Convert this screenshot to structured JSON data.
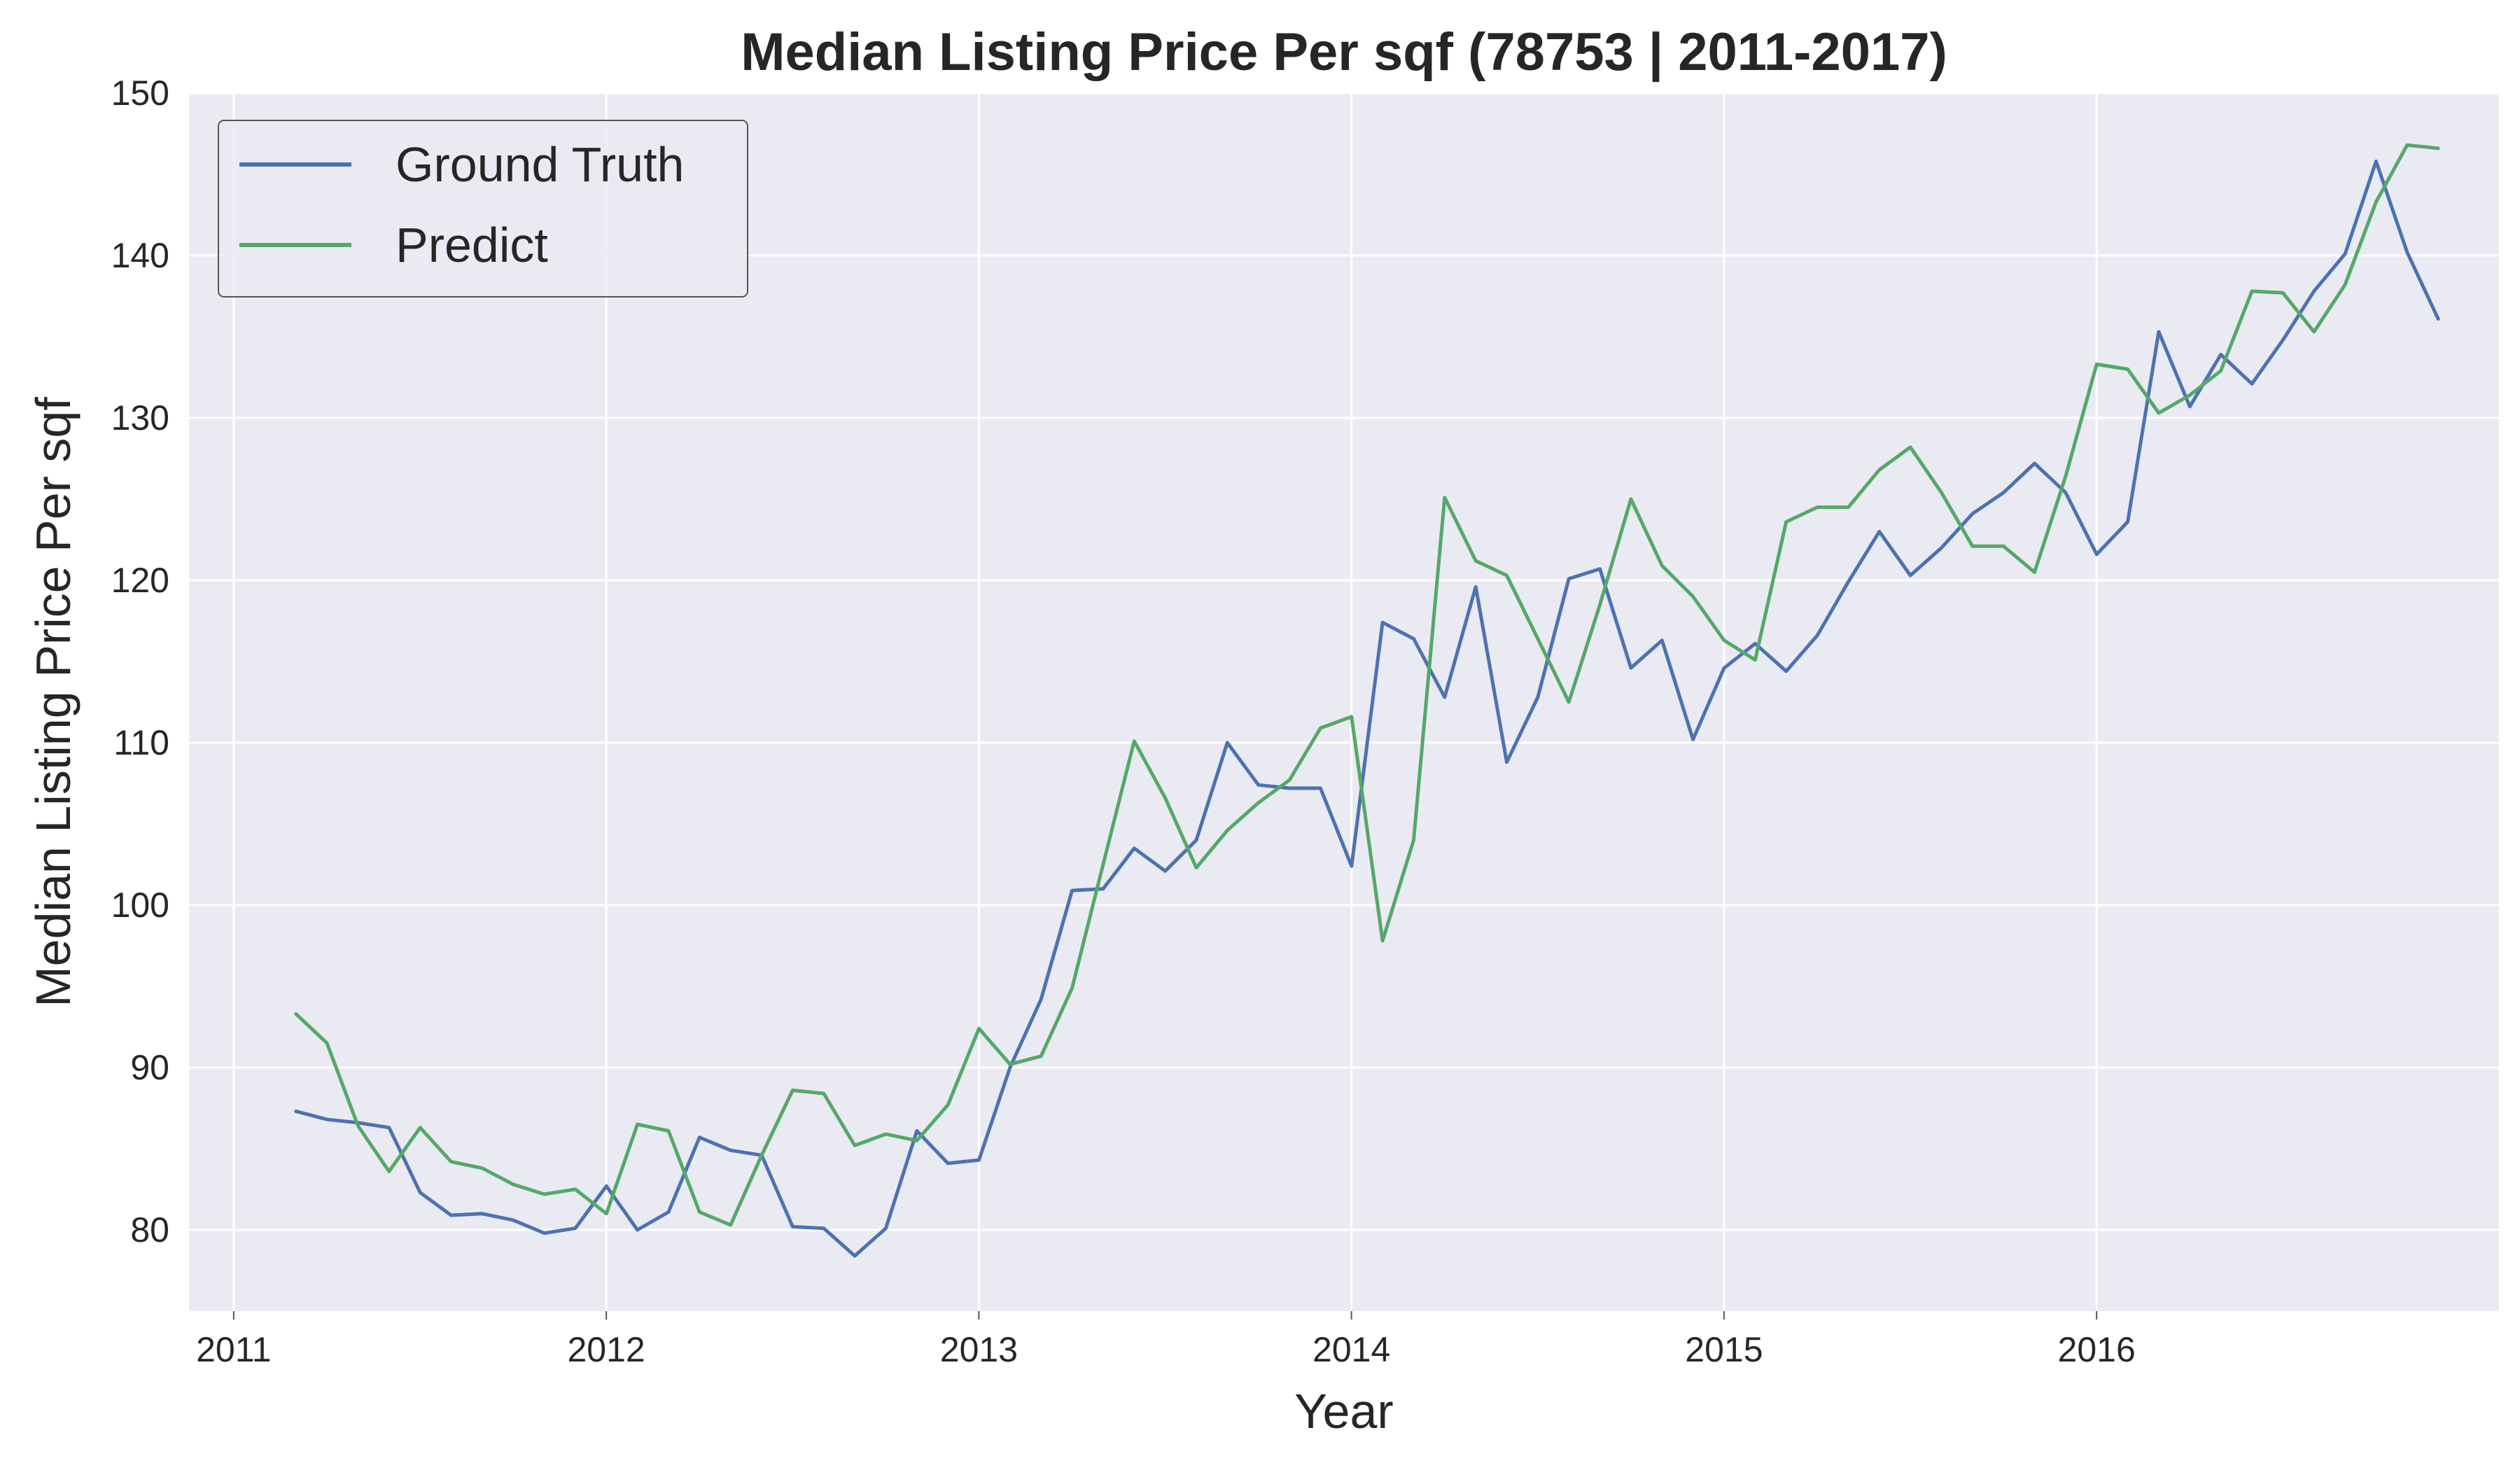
{
  "chart_data": {
    "type": "line",
    "title": "Median Listing Price Per sqf (78753 | 2011-2017)",
    "xlabel": "Year",
    "ylabel": "Median Listing Price Per sqf",
    "xlim": [
      2010.88,
      2017.08
    ],
    "ylim": [
      75,
      150
    ],
    "x_ticks": [
      2011,
      2012,
      2013,
      2014,
      2015,
      2016
    ],
    "y_ticks": [
      80,
      90,
      100,
      110,
      120,
      130,
      140,
      150
    ],
    "grid": true,
    "legend_position": "top-left",
    "background_color": "#EAEAF2",
    "x_start": 2011.167,
    "x_step": 0.08333,
    "series": [
      {
        "name": "Ground Truth",
        "color": "#4C72B0",
        "values": [
          87.3,
          86.8,
          86.6,
          86.3,
          82.3,
          80.9,
          81.0,
          80.6,
          79.8,
          80.1,
          82.7,
          80.0,
          81.1,
          85.7,
          84.9,
          84.6,
          80.2,
          80.1,
          78.4,
          80.1,
          86.1,
          84.1,
          84.3,
          90.0,
          94.2,
          100.9,
          101.0,
          103.5,
          102.1,
          104.0,
          110.0,
          107.4,
          107.2,
          107.2,
          102.4,
          117.4,
          116.4,
          112.8,
          119.6,
          108.8,
          112.8,
          120.1,
          120.7,
          114.6,
          116.3,
          110.2,
          114.6,
          116.1,
          114.4,
          116.6,
          119.9,
          123.0,
          120.3,
          122.0,
          124.1,
          125.4,
          127.2,
          125.4,
          121.6,
          123.6,
          135.3,
          130.7,
          133.9,
          132.1,
          134.8,
          137.8,
          140.1,
          145.8,
          140.2,
          136.1
        ]
      },
      {
        "name": "Predict",
        "color": "#55A868",
        "values": [
          93.3,
          91.5,
          86.4,
          83.6,
          86.3,
          84.2,
          83.8,
          82.8,
          82.2,
          82.5,
          81.0,
          86.5,
          86.1,
          81.1,
          80.3,
          84.6,
          88.6,
          88.4,
          85.2,
          85.9,
          85.5,
          87.7,
          92.4,
          90.2,
          90.7,
          94.9,
          102.5,
          110.1,
          106.6,
          102.3,
          104.6,
          106.3,
          107.7,
          110.9,
          111.6,
          97.8,
          104.0,
          125.1,
          121.2,
          120.3,
          116.4,
          112.5,
          118.5,
          125.0,
          120.9,
          119.0,
          116.3,
          115.1,
          123.6,
          124.5,
          124.5,
          126.8,
          128.2,
          125.4,
          122.1,
          122.1,
          120.5,
          126.4,
          133.3,
          133.0,
          130.3,
          131.4,
          132.9,
          137.8,
          137.7,
          135.3,
          138.2,
          143.3,
          146.8,
          146.6
        ]
      }
    ]
  }
}
